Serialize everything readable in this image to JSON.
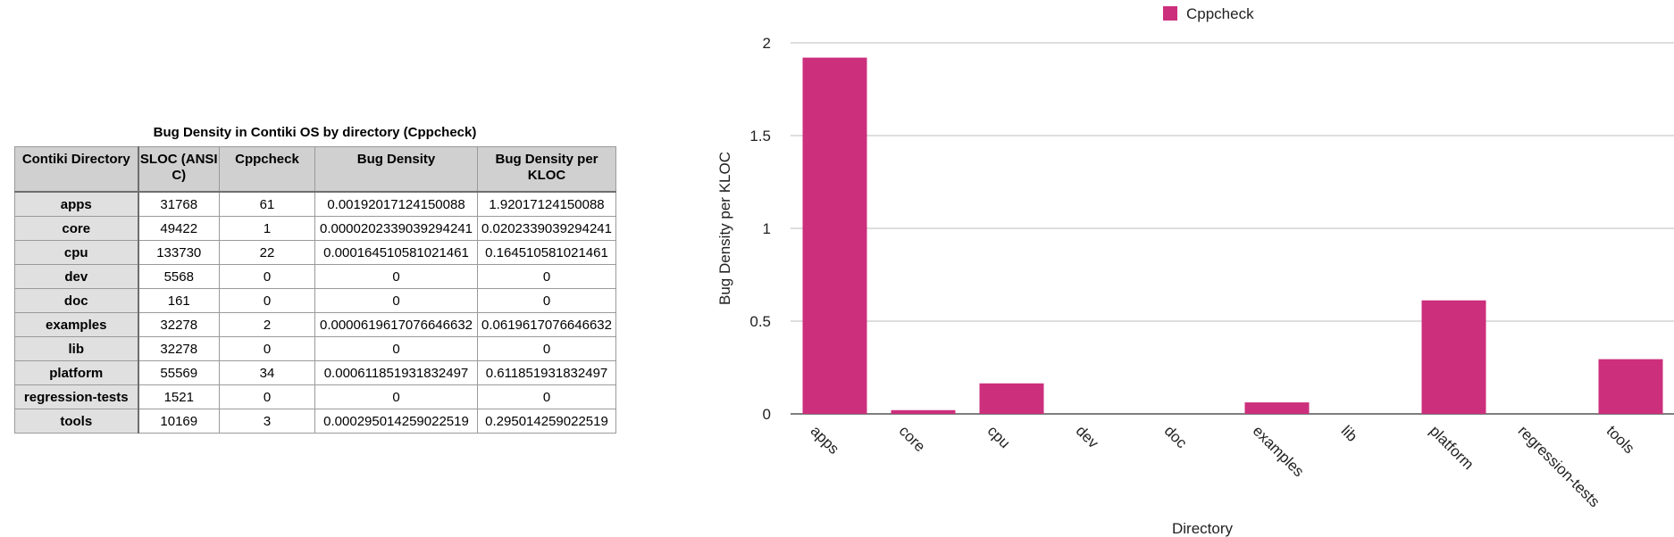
{
  "table": {
    "title": "Bug Density in Contiki OS by directory (Cppcheck)",
    "columns": [
      "Contiki Directory",
      "SLOC (ANSI C)",
      "Cppcheck",
      "Bug Density",
      "Bug Density per KLOC"
    ],
    "rows": [
      [
        "apps",
        "31768",
        "61",
        "0.00192017124150088",
        "1.92017124150088"
      ],
      [
        "core",
        "49422",
        "1",
        "0.0000202339039294241",
        "0.0202339039294241"
      ],
      [
        "cpu",
        "133730",
        "22",
        "0.000164510581021461",
        "0.164510581021461"
      ],
      [
        "dev",
        "5568",
        "0",
        "0",
        "0"
      ],
      [
        "doc",
        "161",
        "0",
        "0",
        "0"
      ],
      [
        "examples",
        "32278",
        "2",
        "0.0000619617076646632",
        "0.0619617076646632"
      ],
      [
        "lib",
        "32278",
        "0",
        "0",
        "0"
      ],
      [
        "platform",
        "55569",
        "34",
        "0.000611851931832497",
        "0.611851931832497"
      ],
      [
        "regression-tests",
        "1521",
        "0",
        "0",
        "0"
      ],
      [
        "tools",
        "10169",
        "3",
        "0.000295014259022519",
        "0.295014259022519"
      ]
    ]
  },
  "chart_data": {
    "type": "bar",
    "title": "",
    "xlabel": "Directory",
    "ylabel": "Bug Density per KLOC",
    "categories": [
      "apps",
      "core",
      "cpu",
      "dev",
      "doc",
      "examples",
      "lib",
      "platform",
      "regression-tests",
      "tools"
    ],
    "series": [
      {
        "name": "Cppcheck",
        "color": "#cc2f7c",
        "values": [
          1.92017124150088,
          0.0202339039294241,
          0.164510581021461,
          0,
          0,
          0.0619617076646632,
          0,
          0.611851931832497,
          0,
          0.295014259022519
        ]
      }
    ],
    "ylim": [
      0,
      2
    ],
    "yticks": [
      "0",
      "0.5",
      "1",
      "1.5",
      "2"
    ],
    "grid": true,
    "legend": "top-center"
  }
}
